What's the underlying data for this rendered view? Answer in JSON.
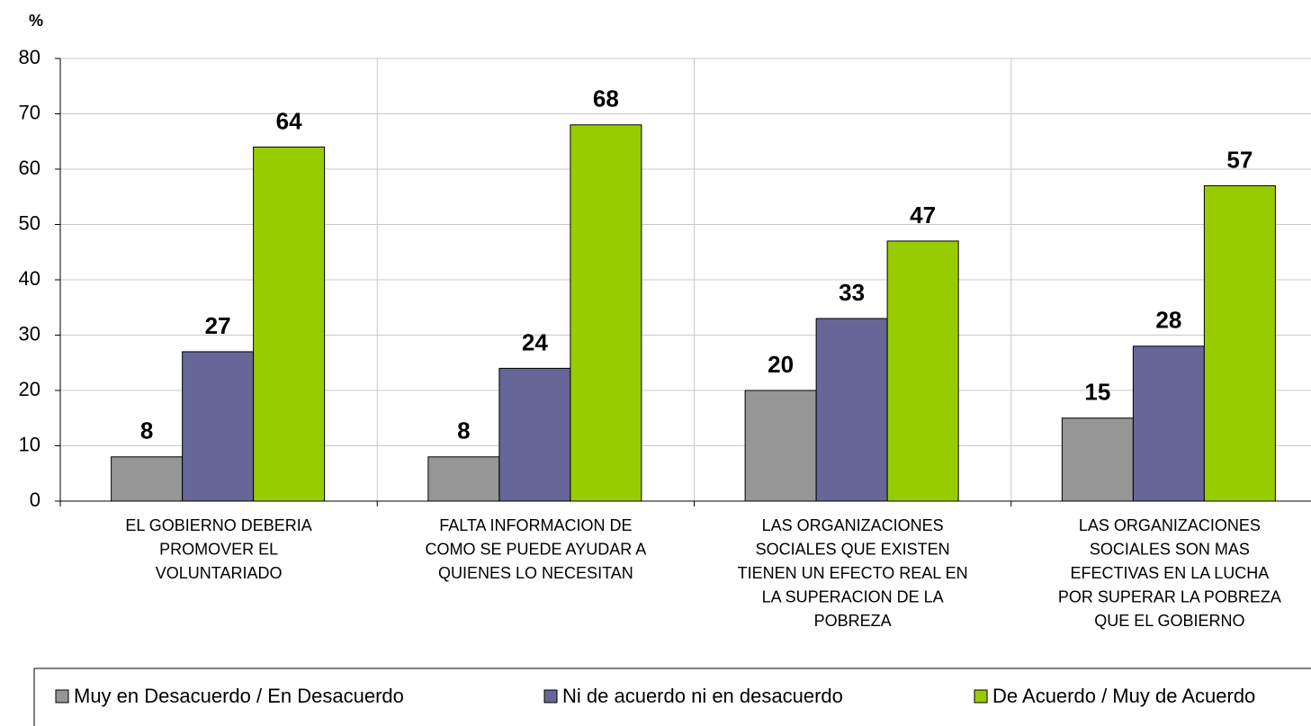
{
  "chart_data": {
    "type": "bar",
    "y_label": "%",
    "categories": [
      "EL GOBIERNO DEBERIA\nPROMOVER EL\nVOLUNTARIADO",
      "FALTA INFORMACION DE\nCOMO SE PUEDE AYUDAR A\nQUIENES LO NECESITAN",
      "LAS ORGANIZACIONES\nSOCIALES QUE EXISTEN\nTIENEN UN EFECTO REAL EN\nLA SUPERACION DE LA\nPOBREZA",
      "LAS ORGANIZACIONES\nSOCIALES SON MAS\nEFECTIVAS EN LA LUCHA\nPOR SUPERAR LA POBREZA\nQUE EL GOBIERNO"
    ],
    "series": [
      {
        "name": "Muy en Desacuerdo / En Desacuerdo",
        "color": "#969696",
        "values": [
          8,
          8,
          20,
          15
        ]
      },
      {
        "name": "Ni de acuerdo ni en desacuerdo",
        "color": "#666699",
        "values": [
          27,
          24,
          33,
          28
        ]
      },
      {
        "name": "De Acuerdo / Muy de Acuerdo",
        "color": "#99cc00",
        "values": [
          64,
          68,
          47,
          57
        ]
      }
    ],
    "ylim": [
      0,
      80
    ],
    "yticks": [
      0,
      10,
      20,
      30,
      40,
      50,
      60,
      70,
      80
    ],
    "grid": true,
    "legend": "bottom"
  }
}
